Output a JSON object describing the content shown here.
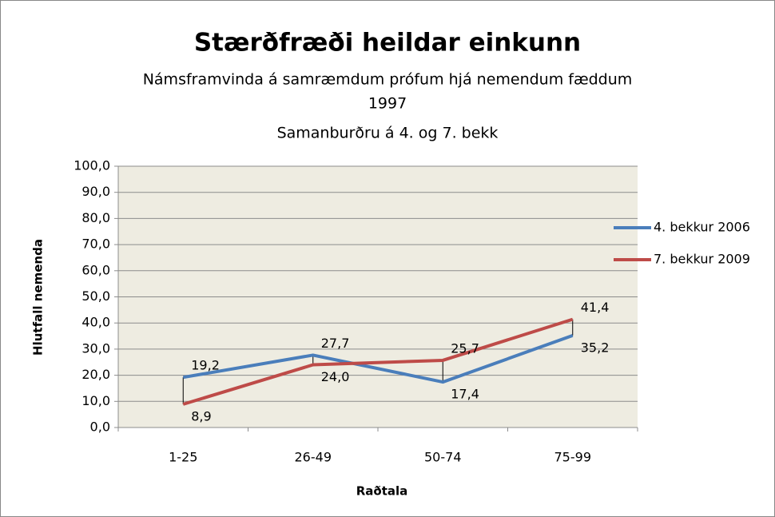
{
  "chart_data": {
    "type": "line",
    "title": "Stærðfræði heildar einkunn",
    "subtitle": [
      "Námsframvinda á samræmdum prófum hjá nemendum fæddum",
      "1997",
      "Samanburðru á 4. og 7. bekk"
    ],
    "x_label": "Raðtala",
    "y_label": "Hlutfall nemenda",
    "categories": [
      "1-25",
      "26-49",
      "50-74",
      "75-99"
    ],
    "series": [
      {
        "name": "4. bekkur 2006",
        "color": "#4a7ebb",
        "values": [
          19.2,
          27.7,
          17.4,
          35.2
        ],
        "value_labels": [
          "19,2",
          "27,7",
          "17,4",
          "35,2"
        ]
      },
      {
        "name": "7. bekkur 2009",
        "color": "#be4b48",
        "values": [
          8.9,
          24.0,
          25.7,
          41.4
        ],
        "value_labels": [
          "8,9",
          "24,0",
          "25,7",
          "41,4"
        ]
      }
    ],
    "ylim": [
      0,
      100
    ],
    "yticks": [
      {
        "value": 0,
        "label": "0,0"
      },
      {
        "value": 10,
        "label": "10,0"
      },
      {
        "value": 20,
        "label": "20,0"
      },
      {
        "value": 30,
        "label": "30,0"
      },
      {
        "value": 40,
        "label": "40,0"
      },
      {
        "value": 50,
        "label": "50,0"
      },
      {
        "value": 60,
        "label": "60,0"
      },
      {
        "value": 70,
        "label": "70,0"
      },
      {
        "value": 80,
        "label": "80,0"
      },
      {
        "value": 90,
        "label": "90,0"
      },
      {
        "value": 100,
        "label": "100,0"
      }
    ],
    "grid": true,
    "legend": "right",
    "drop_lines": true,
    "plot_background": "#eeece1"
  }
}
